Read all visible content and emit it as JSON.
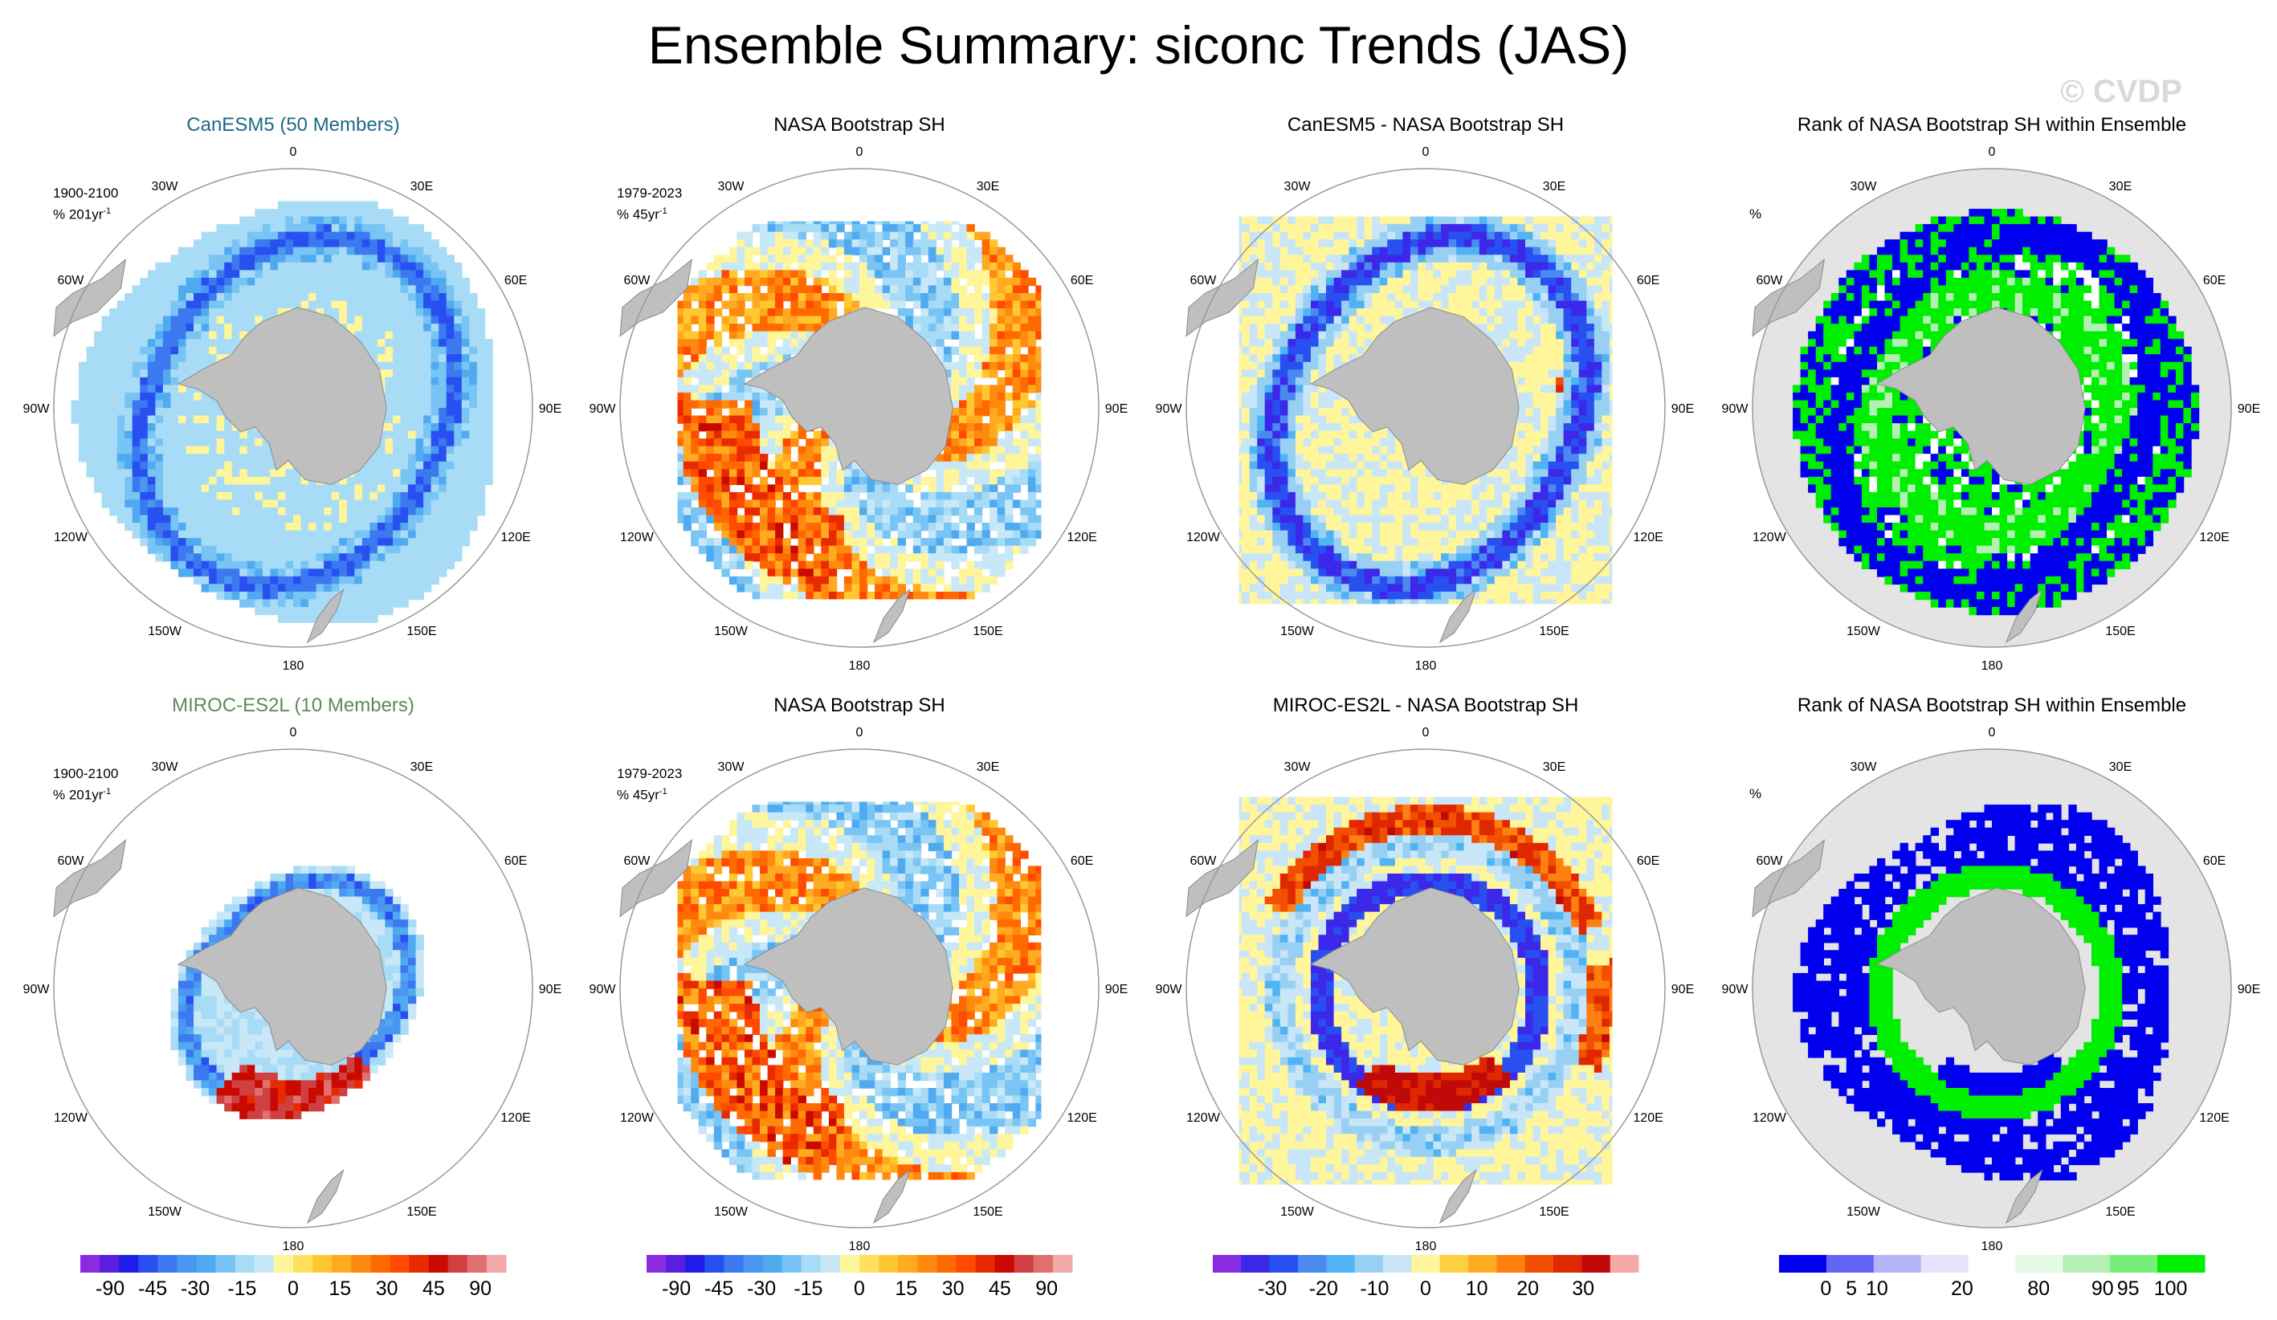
{
  "title": "Ensemble Summary: siconc Trends (JAS)",
  "watermark": "© CVDP",
  "panels": [
    {
      "title": "CanESM5 (50 Members)",
      "title_color": "#1a6a86",
      "period": "1900-2100",
      "units": "% 201yr",
      "type": "model"
    },
    {
      "title": "NASA Bootstrap SH",
      "title_color": "#000000",
      "period": "1979-2023",
      "units": "% 45yr",
      "type": "obs"
    },
    {
      "title": "CanESM5 - NASA Bootstrap SH",
      "title_color": "#000000",
      "period": "",
      "units": "",
      "type": "diff"
    },
    {
      "title": "Rank of NASA Bootstrap SH within Ensemble",
      "title_color": "#000000",
      "period": "",
      "units": "%",
      "type": "rank"
    },
    {
      "title": "MIROC-ES2L (10 Members)",
      "title_color": "#5a8a5a",
      "period": "1900-2100",
      "units": "% 201yr",
      "type": "model2"
    },
    {
      "title": "NASA Bootstrap SH",
      "title_color": "#000000",
      "period": "1979-2023",
      "units": "% 45yr",
      "type": "obs"
    },
    {
      "title": "MIROC-ES2L - NASA Bootstrap SH",
      "title_color": "#000000",
      "period": "",
      "units": "",
      "type": "diff2"
    },
    {
      "title": "Rank of NASA Bootstrap SH within Ensemble",
      "title_color": "#000000",
      "period": "",
      "units": "%",
      "type": "rank2"
    }
  ],
  "units_superscript": "-1",
  "lon_labels": [
    "0",
    "30E",
    "60E",
    "90E",
    "120E",
    "150E",
    "180",
    "150W",
    "120W",
    "90W",
    "60W",
    "30W"
  ],
  "colors": {
    "land": "#bfbfbf",
    "land_stroke": "#8a8a8a",
    "rank_fill": "#e4e4e4",
    "map_border": "#999999"
  },
  "chart_data": [
    {
      "type": "heatmap",
      "name": "trend colorbar",
      "labels": [
        "-90",
        "-45",
        "-30",
        "-15",
        "0",
        "15",
        "30",
        "45",
        "90"
      ],
      "colors": [
        "#8a2be2",
        "#5a1ee0",
        "#1e1ee8",
        "#2850f0",
        "#3c78f0",
        "#4a96f0",
        "#50aaf0",
        "#78c4f4",
        "#a8dcf6",
        "#c8e8f8",
        "#fff59a",
        "#ffe060",
        "#ffc830",
        "#ffaa20",
        "#ff8a10",
        "#ff6a00",
        "#ff4a00",
        "#e82a00",
        "#c80a00",
        "#d04040",
        "#e07070",
        "#f0a8a8"
      ]
    },
    {
      "type": "heatmap",
      "name": "difference colorbar",
      "labels": [
        "-30",
        "-20",
        "-10",
        "0",
        "10",
        "20",
        "30"
      ],
      "colors": [
        "#8a2be2",
        "#3c28e8",
        "#2850f0",
        "#4a8af0",
        "#50b4f4",
        "#98d0f4",
        "#c8e6f8",
        "#fff59a",
        "#ffd040",
        "#ffac20",
        "#ff8010",
        "#f05000",
        "#e02800",
        "#c00a0a",
        "#f4a8a8"
      ]
    },
    {
      "type": "heatmap",
      "name": "rank colorbar",
      "labels": [
        "0",
        "5",
        "10",
        "20",
        "80",
        "90",
        "95",
        "100"
      ],
      "colors": [
        "#0000ee",
        "#6464f4",
        "#b4b4f8",
        "#e4e4fa",
        "#ffffff",
        "#e4fae4",
        "#b4f0b4",
        "#78ee78",
        "#00ee00"
      ]
    }
  ]
}
